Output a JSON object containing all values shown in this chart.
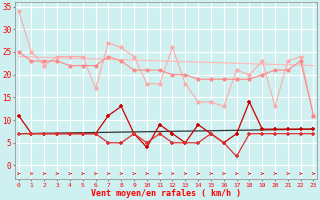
{
  "x": [
    0,
    1,
    2,
    3,
    4,
    5,
    6,
    7,
    8,
    9,
    10,
    11,
    12,
    13,
    14,
    15,
    16,
    17,
    18,
    19,
    20,
    21,
    22,
    23
  ],
  "line1": [
    34,
    25,
    22,
    24,
    24,
    24,
    17,
    27,
    26,
    24,
    18,
    18,
    26,
    18,
    14,
    14,
    13,
    21,
    20,
    23,
    13,
    23,
    24,
    11
  ],
  "line2": [
    25,
    23,
    23,
    23,
    22,
    22,
    22,
    24,
    23,
    21,
    21,
    21,
    20,
    20,
    19,
    19,
    19,
    19,
    19,
    20,
    21,
    21,
    23,
    11
  ],
  "line3_trend_x": [
    0,
    23
  ],
  "line3_trend_y": [
    24,
    22
  ],
  "line4": [
    11,
    7,
    7,
    7,
    7,
    7,
    7,
    11,
    13,
    7,
    4,
    9,
    7,
    5,
    9,
    7,
    5,
    7,
    14,
    8,
    8,
    8,
    8,
    8
  ],
  "line5": [
    7,
    7,
    7,
    7,
    7,
    7,
    7,
    5,
    5,
    7,
    5,
    7,
    5,
    5,
    5,
    7,
    5,
    2,
    7,
    7,
    7,
    7,
    7,
    7
  ],
  "line6_trend_x": [
    0,
    23
  ],
  "line6_trend_y": [
    7,
    8
  ],
  "color_light": "#ffaaaa",
  "color_light2": "#ff8888",
  "color_dark": "#cc0000",
  "color_medium": "#dd3333",
  "color_trend_light": "#ffbbbb",
  "bg_color": "#cff0f0",
  "grid_color": "#ffffff",
  "xlabel": "Vent moyen/en rafales ( km/h )",
  "ylabel_ticks": [
    0,
    5,
    10,
    15,
    20,
    25,
    30,
    35
  ],
  "xlim": [
    -0.3,
    23.3
  ],
  "ylim": [
    -3,
    36
  ]
}
